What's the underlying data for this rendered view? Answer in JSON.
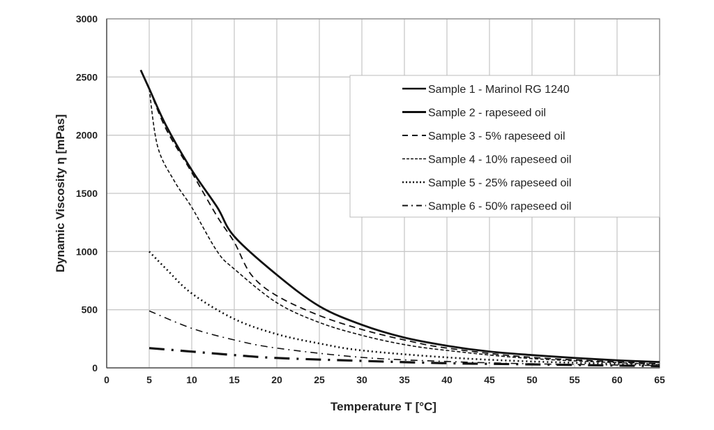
{
  "chart_data": {
    "type": "line",
    "title": "",
    "xlabel": "Temperature T [°C]",
    "ylabel": "Dynamic Viscosity η [mPas]",
    "xlim": [
      0,
      65
    ],
    "ylim": [
      0,
      3000
    ],
    "xticks": [
      "0",
      "5",
      "10",
      "15",
      "20",
      "25",
      "30",
      "35",
      "40",
      "45",
      "50",
      "55",
      "60",
      "65"
    ],
    "yticks": [
      "0",
      "500",
      "1000",
      "1500",
      "2000",
      "2500",
      "3000"
    ],
    "grid": true,
    "legend_position": "top-right",
    "series": [
      {
        "name": "Sample 1 - Marinol RG 1240",
        "style": "solid",
        "x": [
          4,
          5,
          7,
          10,
          13,
          15,
          20,
          25,
          30,
          35,
          40,
          45,
          50,
          55,
          60,
          65
        ],
        "y": [
          2560,
          2400,
          2080,
          1700,
          1380,
          1130,
          800,
          530,
          370,
          260,
          190,
          140,
          110,
          85,
          65,
          50
        ]
      },
      {
        "name": "Sample 2 - rapeseed oil",
        "style": "thick-dash-dot",
        "x": [
          5,
          10,
          15,
          20,
          30,
          40,
          50,
          65
        ],
        "y": [
          170,
          140,
          110,
          85,
          60,
          40,
          30,
          15
        ]
      },
      {
        "name": "Sample 3 - 5% rapeseed oil",
        "style": "long-dash",
        "x": [
          5,
          7,
          10,
          13,
          15,
          17,
          20,
          25,
          30,
          35,
          40,
          50,
          65
        ],
        "y": [
          2400,
          2050,
          1680,
          1300,
          1080,
          800,
          620,
          450,
          330,
          240,
          170,
          90,
          35
        ]
      },
      {
        "name": "Sample 4 - 10% rapeseed oil",
        "style": "short-dash",
        "x": [
          5,
          6,
          8,
          10,
          13,
          15,
          20,
          25,
          30,
          35,
          40,
          50,
          65
        ],
        "y": [
          2400,
          1900,
          1600,
          1380,
          1000,
          850,
          560,
          390,
          280,
          200,
          150,
          80,
          30
        ]
      },
      {
        "name": "Sample 5 - 25% rapeseed oil",
        "style": "dotted",
        "x": [
          5,
          7,
          10,
          15,
          20,
          25,
          30,
          40,
          50,
          65
        ],
        "y": [
          1000,
          850,
          640,
          420,
          290,
          210,
          150,
          90,
          55,
          25
        ]
      },
      {
        "name": "Sample 6 - 50% rapeseed oil",
        "style": "dash-dot",
        "x": [
          5,
          10,
          15,
          20,
          30,
          40,
          50,
          65
        ],
        "y": [
          490,
          340,
          240,
          170,
          90,
          55,
          35,
          20
        ]
      }
    ]
  }
}
